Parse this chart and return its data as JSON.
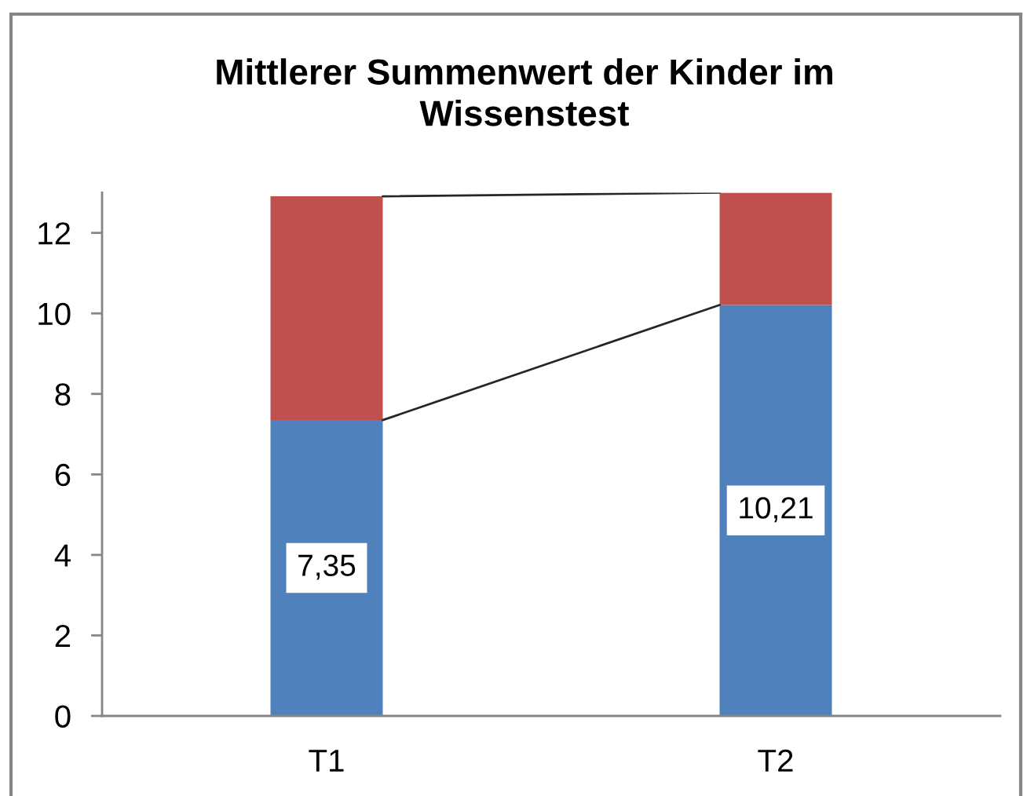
{
  "chart_data": {
    "type": "bar",
    "title": "Mittlerer Summenwert der Kinder im\nWissenstest",
    "categories": [
      "T1",
      "T2"
    ],
    "stacked": true,
    "series": [
      {
        "color": "#4f81bd",
        "values": [
          7.35,
          10.21
        ],
        "value_labels": [
          "7,35",
          "10,21"
        ]
      },
      {
        "color": "#c0504d",
        "values": [
          5.56,
          2.79
        ]
      }
    ],
    "ylim": [
      0,
      13
    ],
    "yticks": [
      0,
      2,
      4,
      6,
      8,
      10,
      12
    ],
    "grid": false
  }
}
